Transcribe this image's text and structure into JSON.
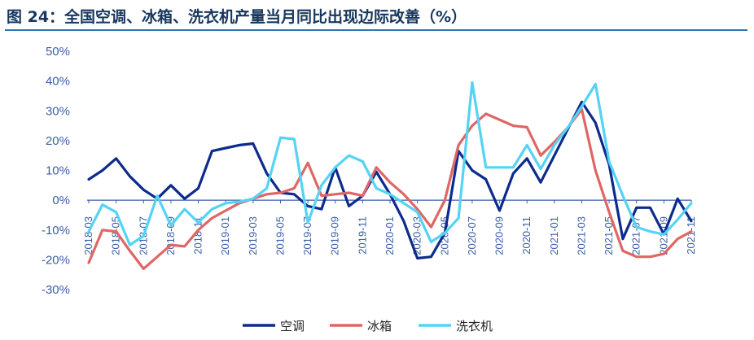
{
  "figure_title": "图 24：全国空调、冰箱、洗衣机产量当月同比出现边际改善（%）",
  "chart_data": {
    "type": "line",
    "title": "图 24：全国空调、冰箱、洗衣机产量当月同比出现边际改善（%）",
    "xlabel": "",
    "ylabel": "",
    "ylim": [
      -30,
      50
    ],
    "yticks": [
      -30,
      -20,
      -10,
      0,
      10,
      20,
      30,
      40,
      50
    ],
    "ytick_labels": [
      "-30%",
      "-20%",
      "-10%",
      "0%",
      "10%",
      "20%",
      "30%",
      "40%",
      "50%"
    ],
    "grid": false,
    "legend_position": "bottom",
    "x": [
      "2018-03",
      "2018-04",
      "2018-05",
      "2018-06",
      "2018-07",
      "2018-08",
      "2018-09",
      "2018-10",
      "2018-11",
      "2018-12",
      "2019-01",
      "2019-02",
      "2019-03",
      "2019-04",
      "2019-05",
      "2019-06",
      "2019-07",
      "2019-08",
      "2019-09",
      "2019-10",
      "2019-11",
      "2019-12",
      "2020-01",
      "2020-02",
      "2020-03",
      "2020-04",
      "2020-05",
      "2020-06",
      "2020-07",
      "2020-08",
      "2020-09",
      "2020-10",
      "2020-11",
      "2020-12",
      "2021-01",
      "2021-02",
      "2021-03",
      "2021-04",
      "2021-05",
      "2021-06",
      "2021-07",
      "2021-08",
      "2021-09",
      "2021-10",
      "2021-11"
    ],
    "xtick_labels": [
      "2018-03",
      "2018-05",
      "2018-07",
      "2018-09",
      "2018-11",
      "2019-01",
      "2019-03",
      "2019-05",
      "2019-07",
      "2019-09",
      "2019-11",
      "2020-01",
      "2020-03",
      "2020-05",
      "2020-07",
      "2020-09",
      "2020-11",
      "2021-01",
      "2021-03",
      "2021-05",
      "2021-07",
      "2021-09",
      "2021-11"
    ],
    "series": [
      {
        "name": "空调",
        "color": "#0C2B8C",
        "values": [
          7,
          10,
          14,
          8,
          3.5,
          0.5,
          5,
          0.5,
          4,
          16.5,
          17.5,
          18.5,
          19,
          9,
          2.5,
          2,
          -2,
          -3,
          11,
          -2,
          1.5,
          9.5,
          2,
          -7,
          -19.5,
          -19,
          -11,
          16.5,
          10,
          7,
          -3.5,
          9,
          14,
          6,
          15,
          24,
          33,
          26,
          12,
          -13,
          -2.5,
          -2.5,
          -11.5,
          0.5,
          -7
        ]
      },
      {
        "name": "冰箱",
        "color": "#E06666",
        "values": [
          -21,
          -10,
          -10.5,
          -17,
          -23,
          -19,
          -15,
          -15.5,
          -10,
          -6,
          -3.5,
          -1,
          0.5,
          2,
          2.5,
          4,
          12.5,
          1.5,
          2,
          2.5,
          1.5,
          11,
          6,
          2,
          -3,
          -9,
          0,
          18.5,
          25,
          29,
          27,
          25,
          24.5,
          15,
          19.5,
          24.5,
          30.5,
          10,
          -4,
          -17,
          -19,
          -19,
          -18,
          -13,
          -10.5
        ]
      },
      {
        "name": "洗衣机",
        "color": "#55D3F5",
        "values": [
          -10.5,
          -1.5,
          -4,
          -15,
          -12,
          1.5,
          -8.5,
          -3,
          -7.5,
          -3,
          -1,
          -0.5,
          0.5,
          4,
          21,
          20.5,
          -7.5,
          5,
          11,
          15,
          13,
          4,
          2,
          -1,
          -4,
          -14,
          -11,
          -6,
          39.5,
          11,
          11,
          11,
          18.5,
          10.5,
          18.5,
          24.5,
          31.5,
          39,
          13,
          1.5,
          -9,
          -10.5,
          -11.5,
          -6.5,
          -1
        ]
      }
    ]
  }
}
